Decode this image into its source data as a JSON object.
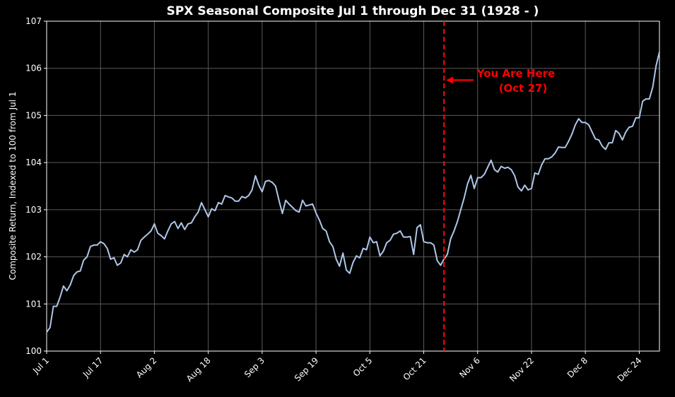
{
  "chart_data": {
    "type": "line",
    "title": "SPX Seasonal Composite Jul 1 through Dec 31 (1928 - )",
    "xlabel": "",
    "ylabel": "Composite Return, Indexed to 100 from Jul 1",
    "ylim": [
      100,
      107
    ],
    "yticks": [
      "100",
      "101",
      "102",
      "103",
      "104",
      "105",
      "106",
      "107"
    ],
    "xticks": [
      "Jul 1",
      "Jul 17",
      "Aug 2",
      "Aug 18",
      "Sep 3",
      "Sep 19",
      "Oct 5",
      "Oct 21",
      "Nov 6",
      "Nov 22",
      "Dec 8",
      "Dec 24"
    ],
    "grid": true,
    "series": [
      {
        "name": "SPX Seasonal Composite",
        "color": "#aec7e8",
        "x": [
          0,
          1,
          2,
          3,
          4,
          5,
          6,
          7,
          8,
          9,
          10,
          11,
          12,
          13,
          14,
          15,
          16,
          17,
          18,
          19,
          20,
          21,
          22,
          23,
          24,
          25,
          26,
          27,
          28,
          29,
          30,
          31,
          32,
          33,
          34,
          35,
          36,
          37,
          38,
          39,
          40,
          41,
          42,
          43,
          44,
          45,
          46,
          47,
          48,
          49,
          50,
          51,
          52,
          53,
          54,
          55,
          56,
          57,
          58,
          59,
          60,
          61,
          62,
          63,
          64,
          65,
          66,
          67,
          68,
          69,
          70,
          71,
          72,
          73,
          74,
          75,
          76,
          77,
          78,
          79,
          80,
          81,
          82,
          83,
          84,
          85,
          86,
          87,
          88,
          89,
          90,
          91,
          92,
          93,
          94,
          95,
          96,
          97,
          98,
          99,
          100,
          101,
          102,
          103,
          104,
          105,
          106,
          107,
          108,
          109,
          110,
          111,
          112,
          113,
          114,
          115,
          116,
          117,
          118,
          119,
          120,
          121,
          122,
          123,
          124,
          125,
          126,
          127,
          128,
          129,
          130,
          131,
          132,
          133,
          134,
          135,
          136,
          137,
          138,
          139,
          140,
          141,
          142,
          143,
          144,
          145,
          146,
          147,
          148,
          149,
          150,
          151,
          152,
          153,
          154,
          155,
          156,
          157,
          158,
          159,
          160,
          161,
          162,
          163,
          164,
          165,
          166,
          167,
          168,
          169,
          170,
          171,
          172,
          173,
          174,
          175,
          176,
          177,
          178,
          179,
          180,
          181,
          182
        ],
        "values": [
          100.4,
          100.5,
          100.95,
          100.95,
          101.15,
          101.38,
          101.28,
          101.4,
          101.6,
          101.68,
          101.7,
          101.93,
          102.0,
          102.22,
          102.25,
          102.25,
          102.32,
          102.28,
          102.18,
          101.95,
          101.98,
          101.82,
          101.87,
          102.05,
          102.0,
          102.15,
          102.1,
          102.15,
          102.35,
          102.42,
          102.48,
          102.55,
          102.7,
          102.5,
          102.45,
          102.38,
          102.55,
          102.7,
          102.75,
          102.6,
          102.72,
          102.58,
          102.7,
          102.72,
          102.85,
          102.95,
          103.15,
          103.0,
          102.85,
          103.02,
          102.98,
          103.15,
          103.12,
          103.3,
          103.27,
          103.25,
          103.18,
          103.18,
          103.28,
          103.25,
          103.3,
          103.42,
          103.72,
          103.52,
          103.38,
          103.6,
          103.62,
          103.58,
          103.5,
          103.2,
          102.92,
          103.2,
          103.12,
          103.05,
          102.98,
          102.95,
          103.2,
          103.08,
          103.1,
          103.12,
          102.93,
          102.78,
          102.6,
          102.55,
          102.32,
          102.22,
          101.95,
          101.8,
          102.08,
          101.72,
          101.65,
          101.88,
          102.02,
          101.98,
          102.18,
          102.15,
          102.42,
          102.3,
          102.32,
          102.02,
          102.12,
          102.3,
          102.35,
          102.48,
          102.5,
          102.55,
          102.42,
          102.42,
          102.43,
          102.05,
          102.62,
          102.68,
          102.32,
          102.3,
          102.3,
          102.25,
          101.92,
          101.82,
          101.95,
          102.05,
          102.38,
          102.55,
          102.75,
          103.0,
          103.25,
          103.55,
          103.73,
          103.45,
          103.68,
          103.68,
          103.75,
          103.9,
          104.05,
          103.85,
          103.8,
          103.92,
          103.88,
          103.9,
          103.85,
          103.72,
          103.48,
          103.4,
          103.52,
          103.42,
          103.45,
          103.78,
          103.75,
          103.95,
          104.08,
          104.08,
          104.12,
          104.2,
          104.33,
          104.32,
          104.32,
          104.45,
          104.6,
          104.8,
          104.93,
          104.85,
          104.85,
          104.8,
          104.65,
          104.5,
          104.48,
          104.35,
          104.28,
          104.42,
          104.42,
          104.68,
          104.62,
          104.48,
          104.65,
          104.75,
          104.77,
          104.95,
          104.95,
          105.3,
          105.35,
          105.35,
          105.6,
          106.05,
          106.35
        ]
      }
    ],
    "marker": {
      "x": 118,
      "label": "You Are Here",
      "sublabel": "(Oct 27)",
      "arrow_y": 105.75,
      "color": "#ff0000"
    }
  }
}
